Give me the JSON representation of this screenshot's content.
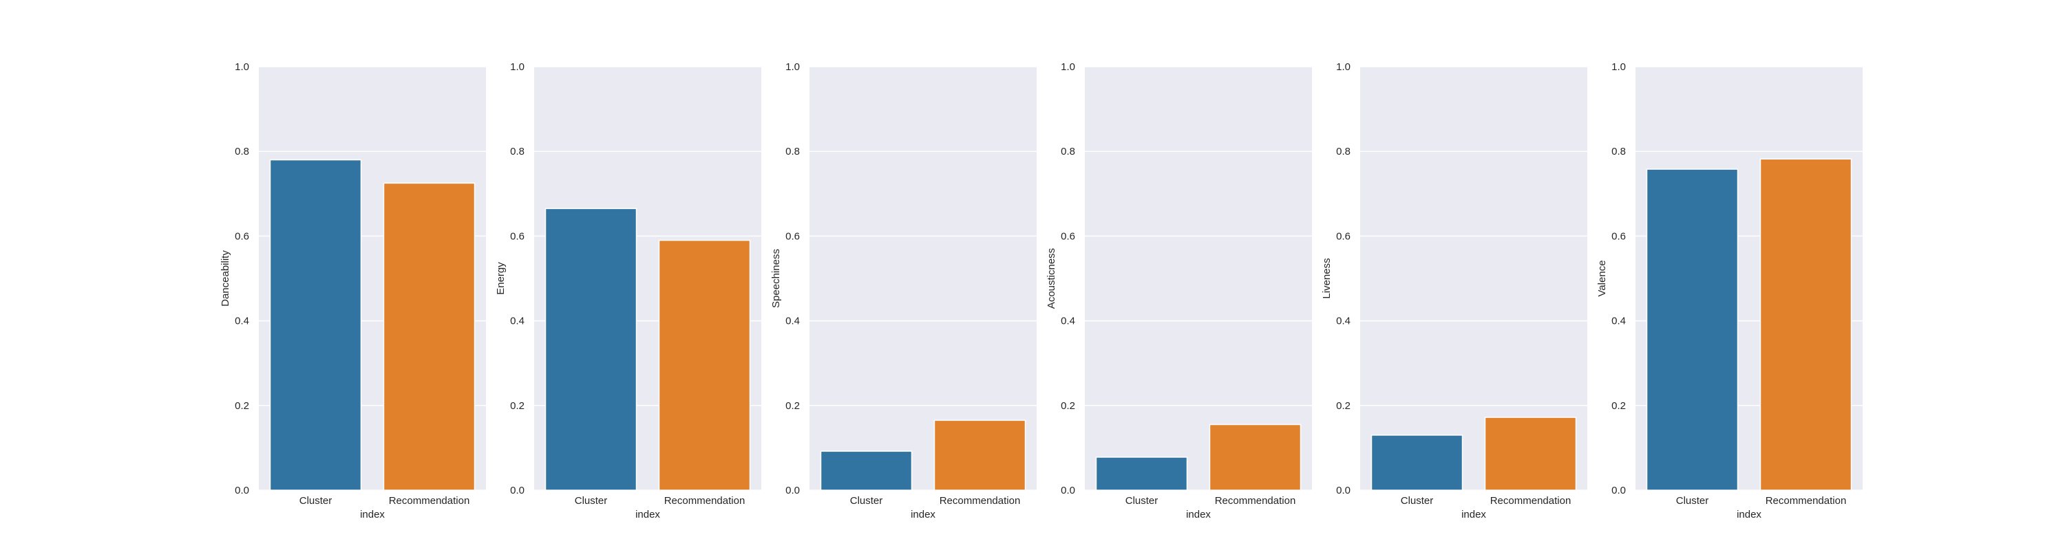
{
  "chart_data": [
    {
      "type": "bar",
      "categories": [
        "Cluster",
        "Recommendation"
      ],
      "values": [
        0.78,
        0.725
      ],
      "xlabel": "index",
      "ylabel": "Danceability",
      "ylim": [
        0,
        1.0
      ],
      "yticks": [
        "0.0",
        "0.2",
        "0.4",
        "0.6",
        "0.8",
        "1.0"
      ],
      "colors": [
        "#3274a1",
        "#e1812c"
      ],
      "grid": true
    },
    {
      "type": "bar",
      "categories": [
        "Cluster",
        "Recommendation"
      ],
      "values": [
        0.665,
        0.59
      ],
      "xlabel": "index",
      "ylabel": "Energy",
      "ylim": [
        0,
        1.0
      ],
      "yticks": [
        "0.0",
        "0.2",
        "0.4",
        "0.6",
        "0.8",
        "1.0"
      ],
      "colors": [
        "#3274a1",
        "#e1812c"
      ],
      "grid": true
    },
    {
      "type": "bar",
      "categories": [
        "Cluster",
        "Recommendation"
      ],
      "values": [
        0.092,
        0.165
      ],
      "xlabel": "index",
      "ylabel": "Speechiness",
      "ylim": [
        0,
        1.0
      ],
      "yticks": [
        "0.0",
        "0.2",
        "0.4",
        "0.6",
        "0.8",
        "1.0"
      ],
      "colors": [
        "#3274a1",
        "#e1812c"
      ],
      "grid": true
    },
    {
      "type": "bar",
      "categories": [
        "Cluster",
        "Recommendation"
      ],
      "values": [
        0.078,
        0.155
      ],
      "xlabel": "index",
      "ylabel": "Acousticness",
      "ylim": [
        0,
        1.0
      ],
      "yticks": [
        "0.0",
        "0.2",
        "0.4",
        "0.6",
        "0.8",
        "1.0"
      ],
      "colors": [
        "#3274a1",
        "#e1812c"
      ],
      "grid": true
    },
    {
      "type": "bar",
      "categories": [
        "Cluster",
        "Recommendation"
      ],
      "values": [
        0.13,
        0.172
      ],
      "xlabel": "index",
      "ylabel": "Liveness",
      "ylim": [
        0,
        1.0
      ],
      "yticks": [
        "0.0",
        "0.2",
        "0.4",
        "0.6",
        "0.8",
        "1.0"
      ],
      "colors": [
        "#3274a1",
        "#e1812c"
      ],
      "grid": true
    },
    {
      "type": "bar",
      "categories": [
        "Cluster",
        "Recommendation"
      ],
      "values": [
        0.758,
        0.782
      ],
      "xlabel": "index",
      "ylabel": "Valence",
      "ylim": [
        0,
        1.0
      ],
      "yticks": [
        "0.0",
        "0.2",
        "0.4",
        "0.6",
        "0.8",
        "1.0"
      ],
      "colors": [
        "#3274a1",
        "#e1812c"
      ],
      "grid": true
    }
  ],
  "style": {
    "plot_background": "#eaeaf2",
    "grid_color": "#ffffff"
  }
}
